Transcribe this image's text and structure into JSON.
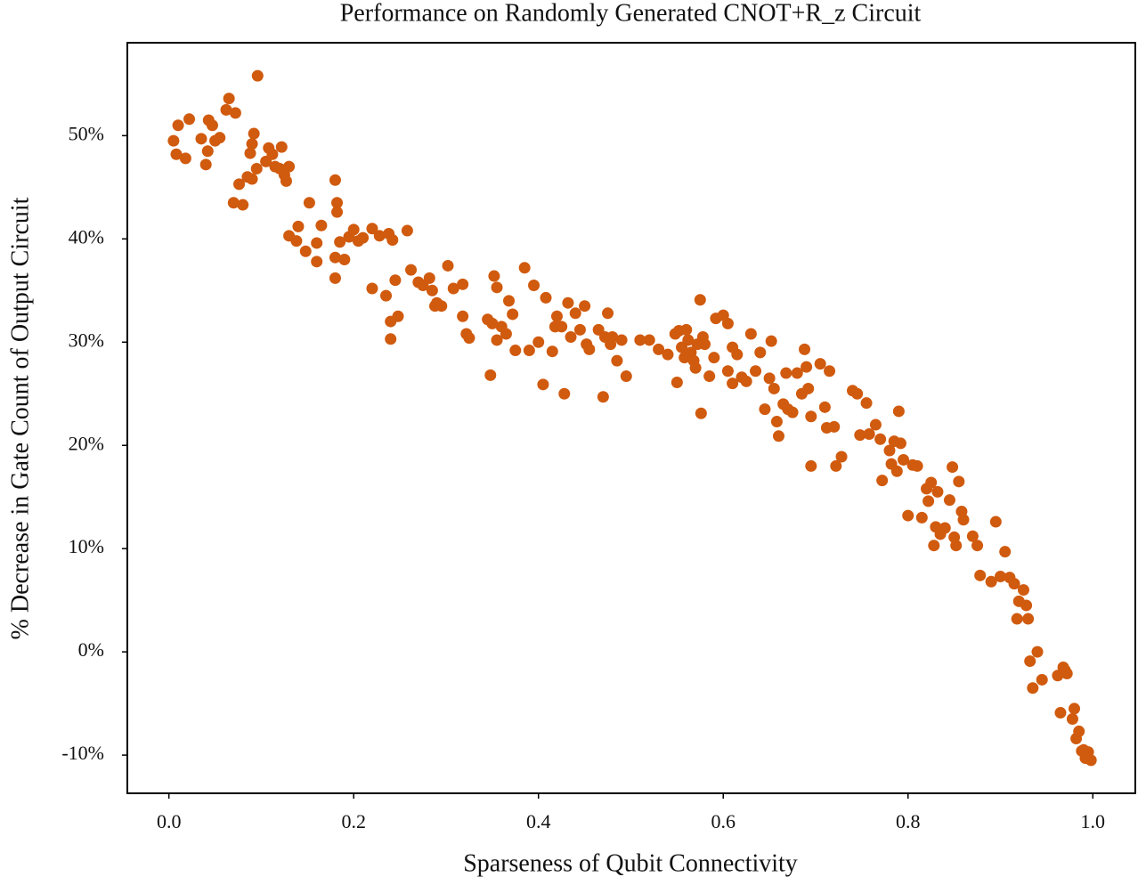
{
  "chart_data": {
    "type": "scatter",
    "title": "Performance on Randomly Generated CNOT+R_z Circuit",
    "xlabel": "Sparseness of Qubit Connectivity",
    "ylabel": "% Decrease in Gate Count of Output Circuit",
    "color": "#d05a0e",
    "xlim": [
      -0.045,
      1.046
    ],
    "ylim": [
      -13.7,
      59
    ],
    "xticks": [
      {
        "value": 0,
        "label": "0.0"
      },
      0.2,
      0.4,
      0.6,
      0.8,
      {
        "value": 1,
        "label": "1.0"
      }
    ],
    "yticks": [
      {
        "value": -10,
        "label": "-10%"
      },
      {
        "value": 0,
        "label": "0%"
      },
      {
        "value": 10,
        "label": "10%"
      },
      {
        "value": 20,
        "label": "20%"
      },
      {
        "value": 30,
        "label": "30%"
      },
      {
        "value": 40,
        "label": "40%"
      },
      {
        "value": 50,
        "label": "50%"
      }
    ],
    "x": [
      0.005,
      0.008,
      0.01,
      0.018,
      0.022,
      0.035,
      0.04,
      0.042,
      0.043,
      0.047,
      0.05,
      0.055,
      0.062,
      0.065,
      0.072,
      0.07,
      0.076,
      0.08,
      0.085,
      0.088,
      0.09,
      0.092,
      0.09,
      0.095,
      0.096,
      0.105,
      0.108,
      0.112,
      0.115,
      0.12,
      0.122,
      0.125,
      0.127,
      0.13,
      0.13,
      0.138,
      0.14,
      0.148,
      0.152,
      0.16,
      0.16,
      0.165,
      0.18,
      0.182,
      0.182,
      0.18,
      0.18,
      0.185,
      0.19,
      0.195,
      0.2,
      0.205,
      0.21,
      0.22,
      0.22,
      0.228,
      0.235,
      0.238,
      0.24,
      0.24,
      0.242,
      0.245,
      0.248,
      0.258,
      0.262,
      0.27,
      0.275,
      0.282,
      0.285,
      0.288,
      0.29,
      0.295,
      0.302,
      0.308,
      0.318,
      0.318,
      0.322,
      0.325,
      0.345,
      0.35,
      0.348,
      0.352,
      0.355,
      0.355,
      0.36,
      0.365,
      0.368,
      0.372,
      0.375,
      0.385,
      0.39,
      0.395,
      0.4,
      0.405,
      0.408,
      0.415,
      0.418,
      0.42,
      0.425,
      0.428,
      0.432,
      0.435,
      0.44,
      0.445,
      0.45,
      0.452,
      0.455,
      0.465,
      0.47,
      0.472,
      0.475,
      0.478,
      0.48,
      0.485,
      0.49,
      0.495,
      0.51,
      0.52,
      0.53,
      0.54,
      0.548,
      0.55,
      0.552,
      0.555,
      0.558,
      0.56,
      0.562,
      0.565,
      0.568,
      0.57,
      0.572,
      0.575,
      0.576,
      0.578,
      0.58,
      0.585,
      0.59,
      0.592,
      0.6,
      0.605,
      0.605,
      0.61,
      0.61,
      0.615,
      0.62,
      0.625,
      0.63,
      0.635,
      0.64,
      0.645,
      0.65,
      0.652,
      0.655,
      0.658,
      0.66,
      0.665,
      0.668,
      0.67,
      0.675,
      0.68,
      0.685,
      0.688,
      0.69,
      0.692,
      0.695,
      0.695,
      0.705,
      0.71,
      0.712,
      0.715,
      0.72,
      0.722,
      0.728,
      0.74,
      0.745,
      0.748,
      0.755,
      0.758,
      0.765,
      0.77,
      0.772,
      0.78,
      0.782,
      0.785,
      0.788,
      0.79,
      0.792,
      0.795,
      0.8,
      0.805,
      0.81,
      0.815,
      0.82,
      0.822,
      0.825,
      0.828,
      0.83,
      0.832,
      0.835,
      0.84,
      0.845,
      0.848,
      0.85,
      0.852,
      0.855,
      0.858,
      0.86,
      0.87,
      0.875,
      0.878,
      0.89,
      0.895,
      0.9,
      0.905,
      0.91,
      0.915,
      0.918,
      0.92,
      0.925,
      0.928,
      0.93,
      0.932,
      0.935,
      0.94,
      0.945,
      0.962,
      0.965,
      0.968,
      0.97,
      0.972,
      0.978,
      0.98,
      0.982,
      0.985,
      0.988,
      0.99,
      0.995,
      0.992,
      0.998
    ],
    "values": [
      49.5,
      48.2,
      51,
      47.8,
      51.6,
      49.7,
      47.2,
      48.5,
      51.5,
      51,
      49.5,
      49.8,
      52.5,
      53.6,
      52.2,
      43.5,
      45.3,
      43.3,
      46,
      48.3,
      49.2,
      50.2,
      45.8,
      46.8,
      55.8,
      47.5,
      48.8,
      48.2,
      47,
      46.8,
      48.9,
      46.2,
      45.6,
      47,
      40.3,
      39.8,
      41.2,
      38.8,
      43.5,
      39.6,
      37.8,
      41.3,
      45.7,
      43.5,
      42.6,
      38.2,
      36.2,
      39.7,
      38,
      40.2,
      40.9,
      39.8,
      40.1,
      41,
      35.2,
      40.3,
      34.5,
      40.5,
      30.3,
      32,
      39.9,
      36,
      32.5,
      40.8,
      37,
      35.8,
      35.5,
      36.2,
      35,
      33.5,
      33.8,
      33.5,
      37.4,
      35.2,
      35.6,
      32.5,
      30.8,
      30.4,
      32.2,
      31.8,
      26.8,
      36.4,
      30.2,
      35.3,
      31.5,
      30.8,
      34,
      32.7,
      29.2,
      37.2,
      29.2,
      35.5,
      30,
      25.9,
      34.3,
      29.1,
      31.5,
      32.5,
      31.5,
      25,
      33.8,
      30.5,
      32.8,
      31.2,
      33.5,
      29.8,
      29.3,
      31.2,
      24.7,
      30.5,
      32.8,
      29.8,
      30.5,
      28.2,
      30.2,
      26.7,
      30.2,
      30.2,
      29.3,
      28.8,
      30.8,
      26.1,
      31.1,
      29.5,
      28.5,
      31.2,
      30.2,
      29,
      28.2,
      27.5,
      29.8,
      34.1,
      23.1,
      30.5,
      29.8,
      26.7,
      28.5,
      32.3,
      32.6,
      31.8,
      27.2,
      29.5,
      26,
      28.8,
      26.6,
      26.2,
      30.8,
      27.2,
      29,
      23.5,
      26.5,
      30.1,
      25.5,
      22.3,
      20.9,
      24,
      27,
      23.5,
      23.2,
      27,
      25,
      29.3,
      27.6,
      25.5,
      22.8,
      18,
      27.9,
      23.7,
      21.7,
      27.2,
      21.8,
      18,
      18.9,
      25.3,
      25,
      21,
      24.1,
      21.1,
      22,
      20.6,
      16.6,
      19.5,
      18.2,
      20.4,
      17.5,
      23.3,
      20.2,
      18.6,
      13.2,
      18.1,
      18,
      13,
      15.8,
      14.6,
      16.4,
      10.3,
      12.1,
      15.5,
      11.4,
      12,
      14.7,
      17.9,
      11.1,
      10.3,
      16.5,
      13.6,
      12.8,
      11.2,
      10.3,
      7.4,
      6.8,
      12.6,
      7.3,
      9.7,
      7.2,
      6.6,
      3.2,
      4.9,
      6,
      4.5,
      3.2,
      -0.9,
      -3.5,
      0,
      -2.7,
      -2.3,
      -5.9,
      -1.5,
      -1.8,
      -2.1,
      -6.5,
      -5.5,
      -8.4,
      -7.7,
      -9.6,
      -9.5,
      -9.7,
      -10.3,
      -10.5
    ]
  }
}
